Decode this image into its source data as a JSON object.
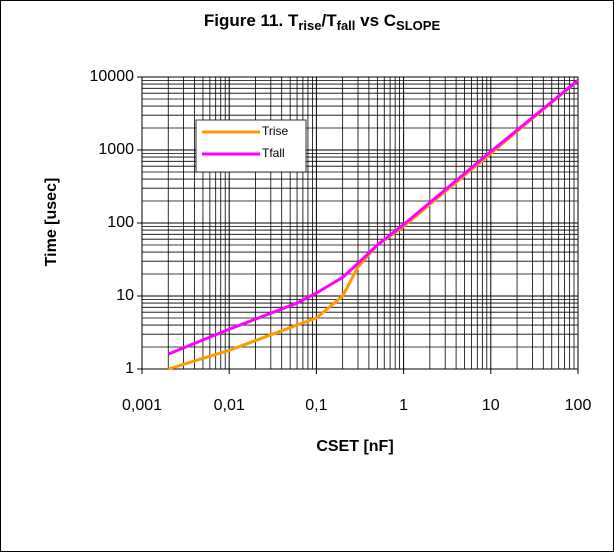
{
  "chart_data": {
    "type": "line",
    "title_parts": [
      "Figure 11. T",
      "rise",
      "/T",
      "fall",
      " vs C",
      "SLOPE"
    ],
    "x_label": "CSET [nF]",
    "y_label": "Time [usec]",
    "x_log": true,
    "y_log": true,
    "grid": true,
    "minor_grid": true,
    "legend": "upper left",
    "xlim": [
      0.001,
      100
    ],
    "xticks": [
      {
        "value": 0.001,
        "label": "0,001"
      },
      {
        "value": 0.01,
        "label": "0,01"
      },
      {
        "value": 0.1,
        "label": "0,1"
      },
      1,
      10,
      100
    ],
    "ylim": [
      1,
      10000
    ],
    "yticks": [
      1,
      10,
      100,
      1000,
      10000
    ],
    "x": [
      0.002,
      0.01,
      0.06,
      0.1,
      0.2,
      0.3,
      0.5,
      1,
      10,
      100
    ],
    "series": [
      {
        "name": "Trise",
        "color": "#ff9900",
        "values": [
          1,
          1.8,
          4,
          5,
          10,
          25,
          50,
          90,
          900,
          9000
        ]
      },
      {
        "name": "Tfall",
        "color": "#ff00ff",
        "values": [
          1.6,
          3.5,
          8,
          11,
          18,
          28,
          50,
          95,
          950,
          9000
        ]
      }
    ]
  }
}
